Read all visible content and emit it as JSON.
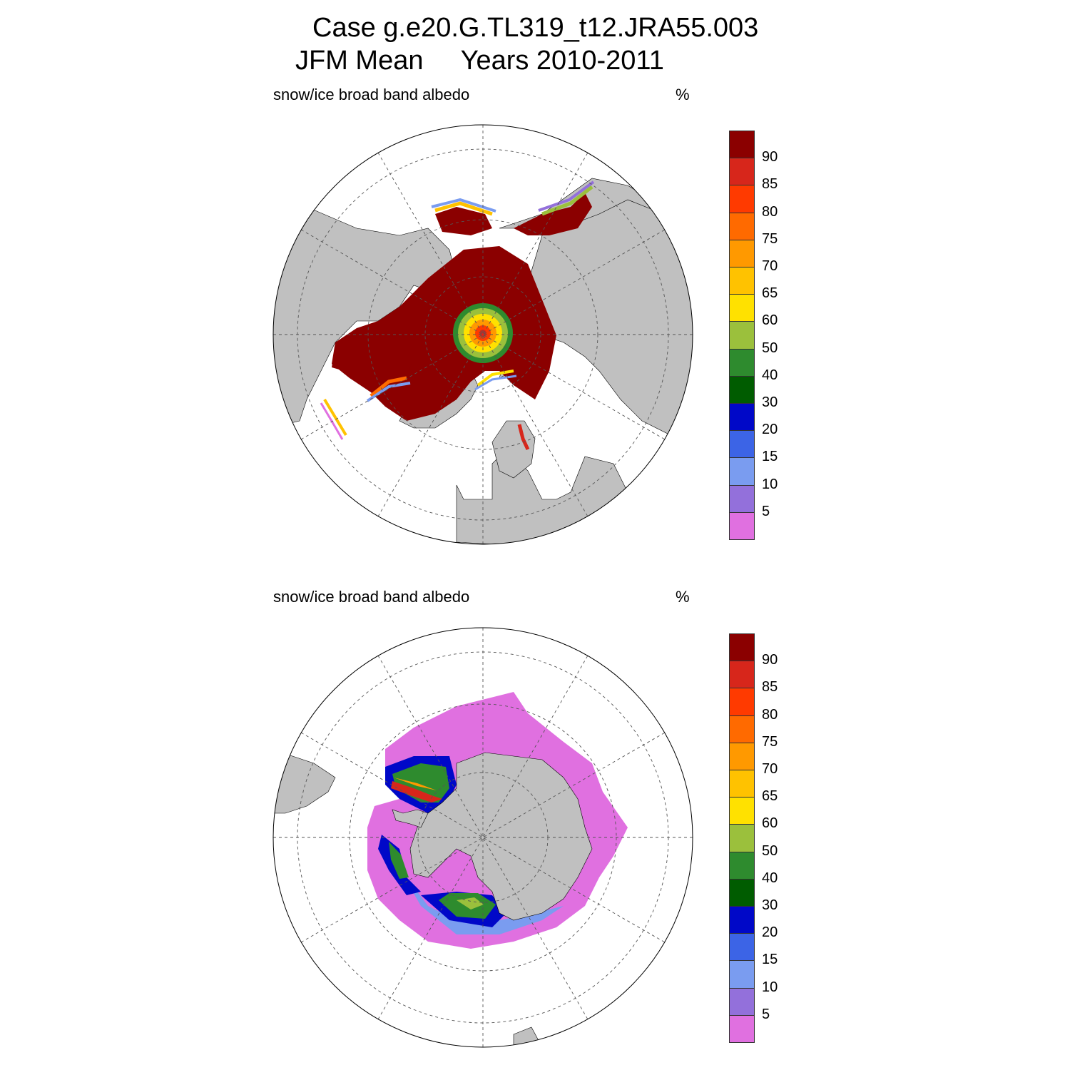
{
  "title": {
    "line1": "Case g.e20.G.TL319_t12.JRA55.003",
    "line2": "JFM Mean     Years 2010-2011"
  },
  "panels": [
    {
      "id": "north",
      "label": "snow/ice broad band albedo",
      "units": "%"
    },
    {
      "id": "south",
      "label": "snow/ice broad band albedo",
      "units": "%"
    }
  ],
  "colorbar": {
    "labels": [
      "90",
      "85",
      "80",
      "75",
      "70",
      "65",
      "60",
      "50",
      "40",
      "30",
      "20",
      "15",
      "10",
      "5"
    ],
    "colors": [
      "#8b0000",
      "#d7261b",
      "#ff3a00",
      "#ff6a00",
      "#ff9900",
      "#ffc200",
      "#ffe100",
      "#9bc03c",
      "#2e8b2e",
      "#005c00",
      "#0008c8",
      "#3c64e6",
      "#7a9cf0",
      "#9370db",
      "#e070e0"
    ]
  },
  "colors": {
    "land": "#c0c0c0",
    "ocean": "#ffffff"
  }
}
